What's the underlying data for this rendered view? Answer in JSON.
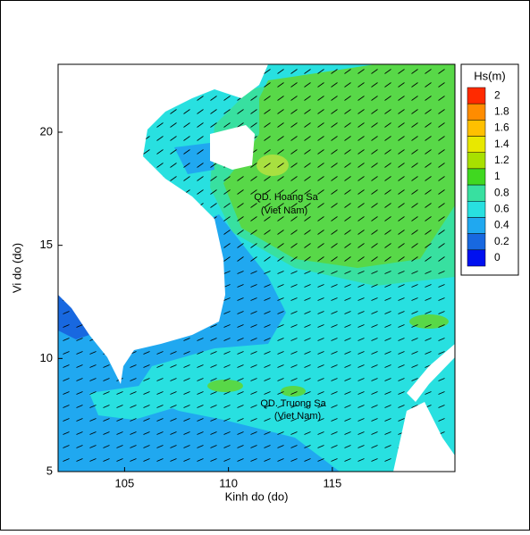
{
  "chart_data": {
    "type": "contour",
    "xlabel": "Kinh do (do)",
    "ylabel": "Vi do (do)",
    "xlim": [
      101.8,
      120.9
    ],
    "ylim": [
      5,
      23
    ],
    "xticks": [
      105,
      110,
      115
    ],
    "yticks": [
      5,
      10,
      15,
      20
    ],
    "colorbar": {
      "title": "Hs(m)",
      "levels": [
        2,
        1.8,
        1.6,
        1.4,
        1.2,
        1,
        0.8,
        0.6,
        0.4,
        0.2,
        0
      ],
      "colors": [
        "#ff2a00",
        "#ff8c00",
        "#ffc000",
        "#e8e800",
        "#a8e000",
        "#40d820",
        "#38e0a0",
        "#28e0e0",
        "#20a8f0",
        "#1868e0",
        "#0010f0"
      ]
    },
    "annotations": [
      "QD. Hoang Sa",
      "(Viet Nam)",
      "QD. Truong Sa",
      "(Viet Nam)"
    ]
  }
}
